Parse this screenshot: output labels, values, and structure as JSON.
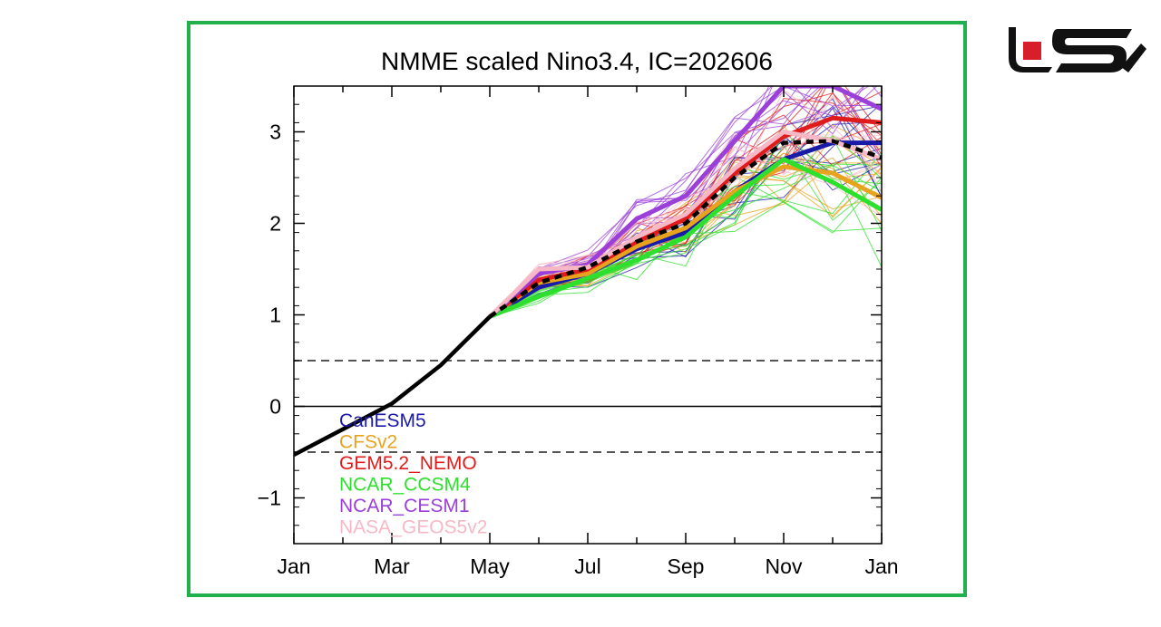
{
  "chart_data": {
    "type": "line",
    "title": "NMME scaled Nino3.4, IC=202606",
    "xlabel": "",
    "ylabel": "",
    "x_ticks": [
      "Jan",
      "Mar",
      "May",
      "Jul",
      "Sep",
      "Nov",
      "Jan"
    ],
    "y_ticks": [
      "−1",
      "0",
      "1",
      "2",
      "3"
    ],
    "xlim": [
      0,
      12
    ],
    "ylim": [
      -1.5,
      3.5
    ],
    "reference_lines": [
      0.5,
      0,
      -0.5
    ],
    "observed": {
      "x": [
        0,
        1,
        2,
        3,
        4
      ],
      "y": [
        -0.53,
        -0.25,
        0.03,
        0.45,
        0.98
      ]
    },
    "ensemble_mean": {
      "x": [
        4,
        5,
        6,
        7,
        8,
        9,
        10,
        11,
        12
      ],
      "y": [
        0.98,
        1.35,
        1.52,
        1.8,
        2.0,
        2.5,
        2.88,
        2.9,
        2.72
      ]
    },
    "series": [
      {
        "name": "CanESM5",
        "color": "#1a1aa8",
        "x": [
          4,
          5,
          6,
          7,
          8,
          9,
          10,
          11,
          12
        ],
        "y": [
          0.98,
          1.3,
          1.45,
          1.72,
          1.9,
          2.35,
          2.7,
          2.88,
          2.88
        ]
      },
      {
        "name": "CFSv2",
        "color": "#e8a31e",
        "x": [
          4,
          5,
          6,
          7,
          8,
          9,
          10,
          11,
          12
        ],
        "y": [
          0.98,
          1.35,
          1.45,
          1.75,
          1.95,
          2.35,
          2.62,
          2.55,
          2.28
        ]
      },
      {
        "name": "GEM5.2_NEMO",
        "color": "#e01b1b",
        "x": [
          4,
          5,
          6,
          7,
          8,
          9,
          10,
          11,
          12
        ],
        "y": [
          0.98,
          1.38,
          1.5,
          1.8,
          2.05,
          2.55,
          2.95,
          3.15,
          3.1
        ]
      },
      {
        "name": "NCAR_CCSM4",
        "color": "#2ee02e",
        "x": [
          4,
          5,
          6,
          7,
          8,
          9,
          10,
          11,
          12
        ],
        "y": [
          0.98,
          1.2,
          1.4,
          1.6,
          1.85,
          2.3,
          2.7,
          2.45,
          2.15
        ]
      },
      {
        "name": "NCAR_CESM1",
        "color": "#9b3fd9",
        "x": [
          4,
          5,
          6,
          7,
          8,
          9,
          10,
          11,
          12
        ],
        "y": [
          0.98,
          1.45,
          1.55,
          2.05,
          2.3,
          2.9,
          3.5,
          3.5,
          3.25
        ]
      },
      {
        "name": "NASA_GEOS5v2",
        "color": "#f7b8c6",
        "x": [
          4,
          5,
          6,
          7,
          8,
          9,
          10,
          11,
          12
        ],
        "y": [
          0.98,
          1.5,
          1.52,
          1.85,
          2.1,
          2.6,
          3.0,
          2.9,
          2.7
        ]
      }
    ]
  }
}
